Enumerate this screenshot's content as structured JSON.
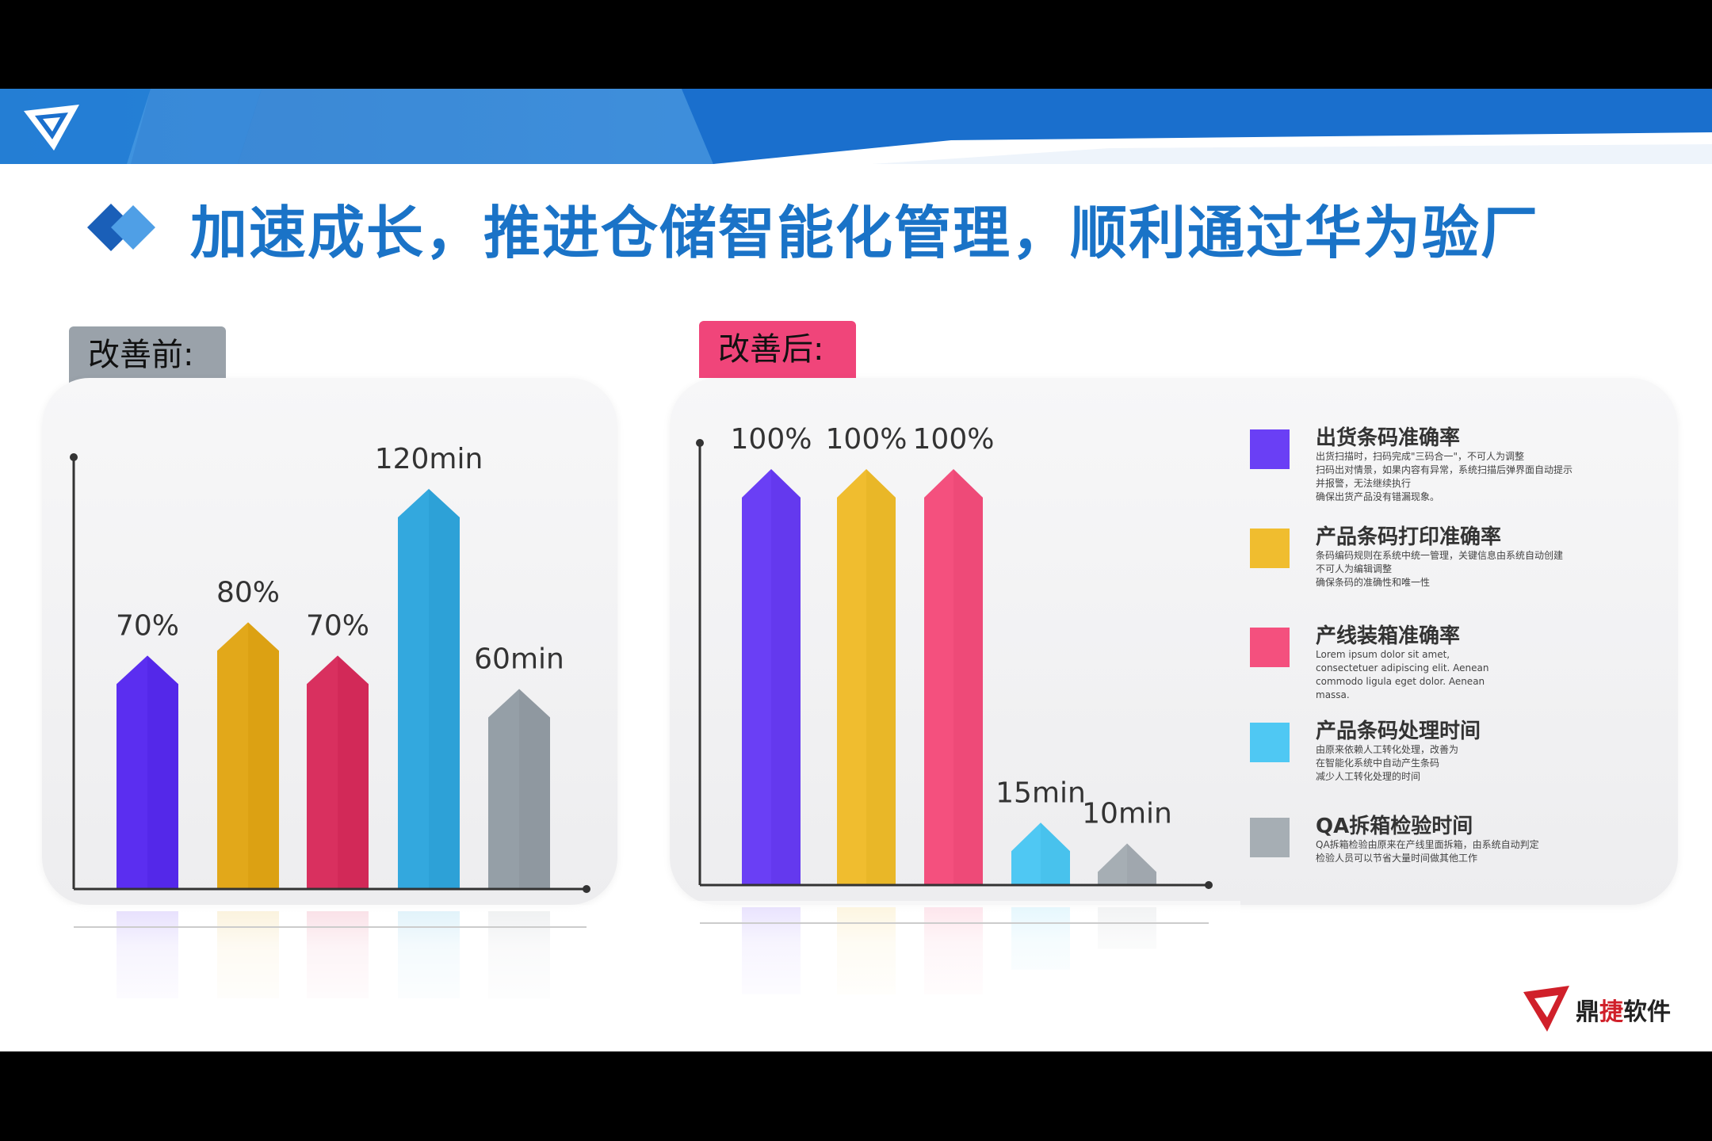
{
  "slide": {
    "title": "加速成长，推进仓储智能化管理，顺利通过华为验厂",
    "banner_color": "#1a73c7",
    "title_color": "#1a73c7"
  },
  "before": {
    "tag": "改善前:",
    "tag_color": "#9aa2aa"
  },
  "after": {
    "tag": "改善后:",
    "tag_color": "#f0457a"
  },
  "chart_data": [
    {
      "type": "bar",
      "title": "改善前:",
      "categories": [
        "出货条码准确率",
        "产品条码打印准确率",
        "产线装箱准确率",
        "产品条码处理时间",
        "QA拆箱检验时间"
      ],
      "values": [
        70,
        80,
        70,
        120,
        60
      ],
      "labels": [
        "70%",
        "80%",
        "70%",
        "120min",
        "60min"
      ],
      "colors": [
        "#5b2ef0",
        "#e2a81a",
        "#d9305f",
        "#33a8de",
        "#959fa7"
      ],
      "legend": "none"
    },
    {
      "type": "bar",
      "title": "改善后:",
      "categories": [
        "出货条码准确率",
        "产品条码打印准确率",
        "产线装箱准确率",
        "产品条码处理时间",
        "QA拆箱检验时间"
      ],
      "values": [
        100,
        100,
        100,
        15,
        10
      ],
      "labels": [
        "100%",
        "100%",
        "100%",
        "15min",
        "10min"
      ],
      "colors": [
        "#6a3ff5",
        "#f0bd2f",
        "#f4507e",
        "#4fc8f3",
        "#a6aeb4"
      ],
      "legend": "right",
      "legend_items": [
        {
          "title": "出货条码准确率",
          "color": "#6a3ff5",
          "desc": "出货扫描时，扫码完成\"三码合一\"，不可人为调整\n扫码出对情景，如果内容有异常，系统扫描后弹界面自动提示\n并报警，无法继续执行\n确保出货产品没有错漏现象。"
        },
        {
          "title": "产品条码打印准确率",
          "color": "#f0bd2f",
          "desc": "条码编码规则在系统中统一管理，关键信息由系统自动创建\n不可人为编辑调整\n确保条码的准确性和唯一性"
        },
        {
          "title": "产线装箱准确率",
          "color": "#f4507e",
          "desc": "Lorem ipsum dolor sit amet,\nconsectetuer adipiscing elit. Aenean\ncommodo ligula eget dolor. Aenean\nmassa."
        },
        {
          "title": "产品条码处理时间",
          "color": "#4fc8f3",
          "desc": "由原来依赖人工转化处理，改善为\n在智能化系统中自动产生条码\n减少人工转化处理的时间"
        },
        {
          "title": "QA拆箱检验时间",
          "color": "#a6aeb4",
          "desc": "QA拆箱检验由原来在产线里面拆箱，由系统自动判定\n检验人员可以节省大量时间做其他工作"
        }
      ]
    }
  ],
  "logo": {
    "brand_part1": "鼎",
    "brand_part2": "捷",
    "brand_part3": "软件"
  }
}
